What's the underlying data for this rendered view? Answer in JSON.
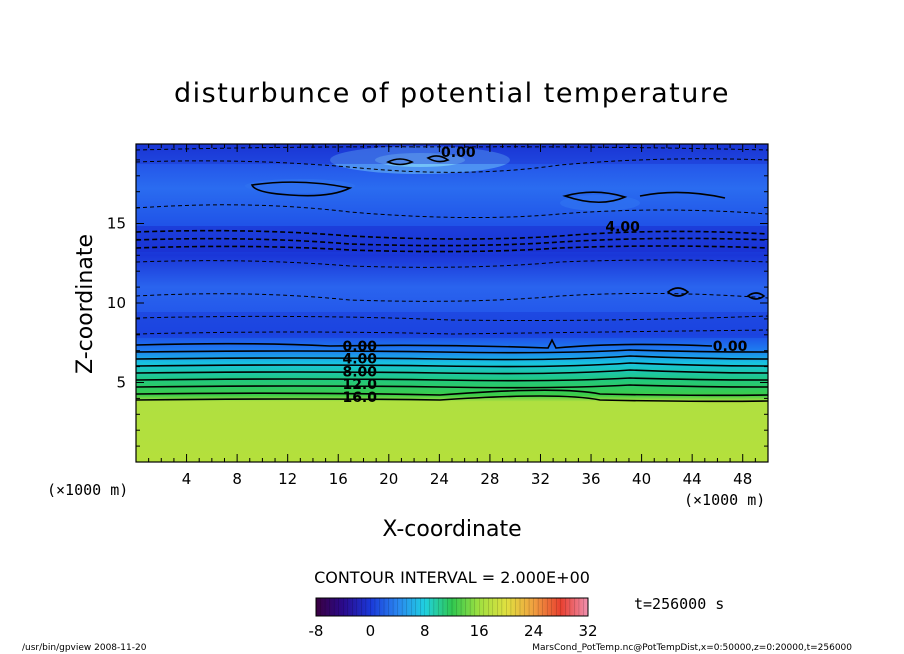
{
  "chart_data": {
    "type": "heatmap",
    "title": "disturbunce of potential temperature",
    "xlabel": "X-coordinate",
    "ylabel": "Z-coordinate",
    "x_unit_left": "(×1000 m)",
    "x_unit_right": "(×1000 m)",
    "xlim": [
      0,
      50
    ],
    "ylim": [
      0,
      20
    ],
    "x_ticks": [
      4,
      8,
      12,
      16,
      20,
      24,
      28,
      32,
      36,
      40,
      44,
      48
    ],
    "y_ticks": [
      5,
      10,
      15
    ],
    "contour_interval_text": "CONTOUR INTERVAL = 2.000E+00",
    "time_text": "t=256000 s",
    "colorbar": {
      "range": [
        -8,
        32
      ],
      "tick_values": [
        -8,
        0,
        8,
        16,
        24,
        32
      ]
    },
    "contour_labels": [
      {
        "text": "0.00",
        "x": 25.5,
        "z": 19.5
      },
      {
        "text": "4.00",
        "x": 38.5,
        "z": 14.8
      },
      {
        "text": "0.00",
        "x": 17.7,
        "z": 7.3
      },
      {
        "text": "4.00",
        "x": 17.7,
        "z": 6.5
      },
      {
        "text": "8.00",
        "x": 17.7,
        "z": 5.7
      },
      {
        "text": "12.0",
        "x": 17.7,
        "z": 4.9
      },
      {
        "text": "16.0",
        "x": 17.7,
        "z": 4.1
      },
      {
        "text": "0.00",
        "x": 47.0,
        "z": 7.3
      }
    ]
  },
  "footer": {
    "left": "/usr/bin/gpview   2008-11-20",
    "right": "MarsCond_PotTemp.nc@PotTempDist,x=0:50000,z=0:20000,t=256000"
  }
}
